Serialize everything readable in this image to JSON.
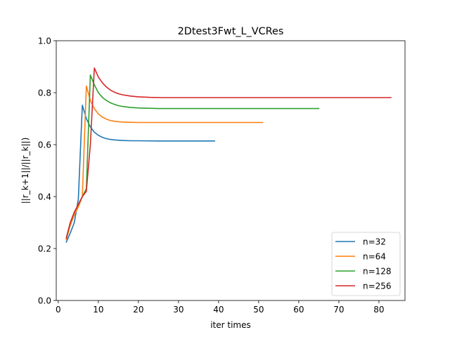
{
  "chart_data": {
    "type": "line",
    "title": "2Dtest3Fwt_L_VCRes",
    "xlabel": "iter times",
    "ylabel": "||r_k+1||/||r_k||)",
    "xlim": [
      -0.5,
      86.5
    ],
    "ylim": [
      0.0,
      1.0
    ],
    "xticks": [
      0,
      10,
      20,
      30,
      40,
      50,
      60,
      70,
      80
    ],
    "yticks": [
      0.0,
      0.2,
      0.4,
      0.6,
      0.8,
      1.0
    ],
    "xtick_labels": [
      "0",
      "10",
      "20",
      "30",
      "40",
      "50",
      "60",
      "70",
      "80"
    ],
    "ytick_labels": [
      "0.0",
      "0.2",
      "0.4",
      "0.6",
      "0.8",
      "1.0"
    ],
    "grid": false,
    "legend_position": "lower-right",
    "series": [
      {
        "name": "n=32",
        "color": "#1f77b4",
        "x": [
          2,
          3,
          4,
          5,
          6,
          7,
          8,
          9,
          10,
          11,
          12,
          13,
          14,
          15,
          16,
          18,
          20,
          25,
          30,
          35,
          39
        ],
        "y": [
          0.225,
          0.26,
          0.3,
          0.39,
          0.752,
          0.7,
          0.668,
          0.648,
          0.636,
          0.628,
          0.623,
          0.62,
          0.618,
          0.617,
          0.616,
          0.615,
          0.615,
          0.614,
          0.614,
          0.614,
          0.614
        ]
      },
      {
        "name": "n=64",
        "color": "#ff7f0e",
        "x": [
          2,
          3,
          4,
          5,
          6,
          7,
          8,
          9,
          10,
          11,
          12,
          13,
          14,
          15,
          16,
          18,
          20,
          25,
          30,
          40,
          51
        ],
        "y": [
          0.235,
          0.29,
          0.33,
          0.36,
          0.4,
          0.826,
          0.77,
          0.738,
          0.718,
          0.706,
          0.698,
          0.693,
          0.69,
          0.688,
          0.687,
          0.686,
          0.685,
          0.685,
          0.685,
          0.685,
          0.685
        ]
      },
      {
        "name": "n=128",
        "color": "#2ca02c",
        "x": [
          2,
          3,
          4,
          5,
          6,
          7,
          8,
          9,
          10,
          11,
          12,
          13,
          14,
          15,
          16,
          18,
          20,
          25,
          30,
          40,
          50,
          65
        ],
        "y": [
          0.24,
          0.3,
          0.34,
          0.37,
          0.4,
          0.43,
          0.868,
          0.83,
          0.8,
          0.782,
          0.77,
          0.761,
          0.755,
          0.75,
          0.747,
          0.743,
          0.741,
          0.739,
          0.739,
          0.739,
          0.739,
          0.739
        ]
      },
      {
        "name": "n=256",
        "color": "#d62728",
        "x": [
          2,
          3,
          4,
          5,
          6,
          7,
          8,
          9,
          10,
          11,
          12,
          13,
          14,
          15,
          16,
          18,
          20,
          23,
          26,
          30,
          40,
          50,
          60,
          70,
          83
        ],
        "y": [
          0.24,
          0.3,
          0.34,
          0.37,
          0.4,
          0.42,
          0.6,
          0.895,
          0.86,
          0.838,
          0.822,
          0.81,
          0.802,
          0.796,
          0.792,
          0.787,
          0.784,
          0.782,
          0.781,
          0.781,
          0.781,
          0.781,
          0.781,
          0.781,
          0.781
        ]
      }
    ]
  }
}
